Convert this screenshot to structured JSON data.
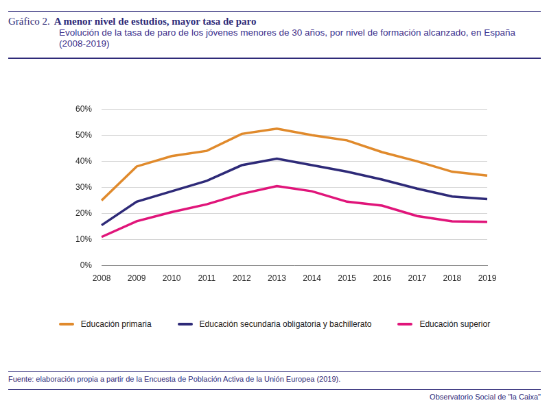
{
  "chart_data": {
    "type": "line",
    "label": "Gráfico 2.",
    "title": "A menor nivel de estudios, mayor tasa de paro",
    "subtitle": "Evolución de la tasa de paro de los jóvenes menores de 30 años, por nivel de formación alcanzado, en España (2008-2019)",
    "source": "Fuente: elaboración propia a partir de la Encuesta de Población Activa de la Unión Europea (2019).",
    "credit": "Observatorio Social de \"la Caixa\"",
    "categories": [
      "2008",
      "2009",
      "2010",
      "2011",
      "2012",
      "2013",
      "2014",
      "2015",
      "2016",
      "2017",
      "2018",
      "2019"
    ],
    "series": [
      {
        "name": "Educación primaria",
        "color": "#e08a2c",
        "values": [
          25,
          38,
          42,
          44,
          50.5,
          52.5,
          50,
          48,
          43.5,
          40,
          36,
          34.5
        ]
      },
      {
        "name": "Educación secundaria obligatoria y bachillerato",
        "color": "#2e2a78",
        "values": [
          15.5,
          24.5,
          28.5,
          32.5,
          38.5,
          41,
          38.5,
          36,
          33,
          29.5,
          26.5,
          25.5
        ]
      },
      {
        "name": "Educación superior",
        "color": "#e0157a",
        "values": [
          11,
          17,
          20.5,
          23.5,
          27.5,
          30.5,
          28.5,
          24.5,
          23,
          19,
          17,
          16.8
        ]
      }
    ],
    "ylim": [
      0,
      60
    ],
    "yticks": [
      {
        "value": 0,
        "label": "0%"
      },
      {
        "value": 10,
        "label": "10%"
      },
      {
        "value": 20,
        "label": "20%"
      },
      {
        "value": 30,
        "label": "30%"
      },
      {
        "value": 40,
        "label": "40%"
      },
      {
        "value": 50,
        "label": "50%"
      },
      {
        "value": 60,
        "label": "60%"
      }
    ],
    "grid": true,
    "legend": "bottom"
  }
}
